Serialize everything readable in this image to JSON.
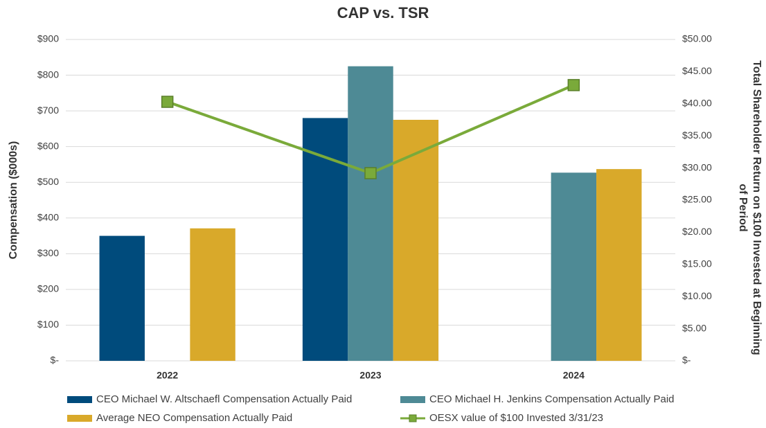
{
  "chart_data": {
    "type": "bar",
    "title": "CAP vs. TSR",
    "y_label": "Compensation ($000s)",
    "y2_label": [
      "Total Shareholder Return on $100 Invested at Beginning",
      "of Period"
    ],
    "categories": [
      "2022",
      "2023",
      "2024"
    ],
    "series": [
      {
        "name": "CEO Michael W. Altschaefl Compensation Actually Paid",
        "color": "#004b7c",
        "values": [
          350,
          680,
          null
        ]
      },
      {
        "name": "CEO Michael H. Jenkins Compensation Actually Paid",
        "color": "#4e8a95",
        "values": [
          null,
          825,
          527
        ]
      },
      {
        "name": "Average NEO Compensation Actually Paid",
        "color": "#d9a92a",
        "values": [
          371,
          675,
          537
        ]
      },
      {
        "name": "OESX value of $100 Invested 3/31/23",
        "color": "#7aaa3a",
        "type": "line",
        "axis": "y2",
        "values": [
          40.3,
          29.2,
          42.9
        ]
      }
    ],
    "ylim": [
      0,
      900
    ],
    "yticks": [
      {
        "value": 0,
        "label": "$-"
      },
      {
        "value": 100,
        "label": "$100"
      },
      {
        "value": 200,
        "label": "$200"
      },
      {
        "value": 300,
        "label": "$300"
      },
      {
        "value": 400,
        "label": "$400"
      },
      {
        "value": 500,
        "label": "$500"
      },
      {
        "value": 600,
        "label": "$600"
      },
      {
        "value": 700,
        "label": "$700"
      },
      {
        "value": 800,
        "label": "$800"
      },
      {
        "value": 900,
        "label": "$900"
      }
    ],
    "y2lim": [
      0,
      50
    ],
    "y2ticks": [
      {
        "value": 0,
        "label": "$-"
      },
      {
        "value": 5,
        "label": "$5.00"
      },
      {
        "value": 10,
        "label": "$10.00"
      },
      {
        "value": 15,
        "label": "$15.00"
      },
      {
        "value": 20,
        "label": "$20.00"
      },
      {
        "value": 25,
        "label": "$25.00"
      },
      {
        "value": 30,
        "label": "$30.00"
      },
      {
        "value": 35,
        "label": "$35.00"
      },
      {
        "value": 40,
        "label": "$40.00"
      },
      {
        "value": 45,
        "label": "$45.00"
      },
      {
        "value": 50,
        "label": "$50.00"
      }
    ],
    "grid": true
  }
}
